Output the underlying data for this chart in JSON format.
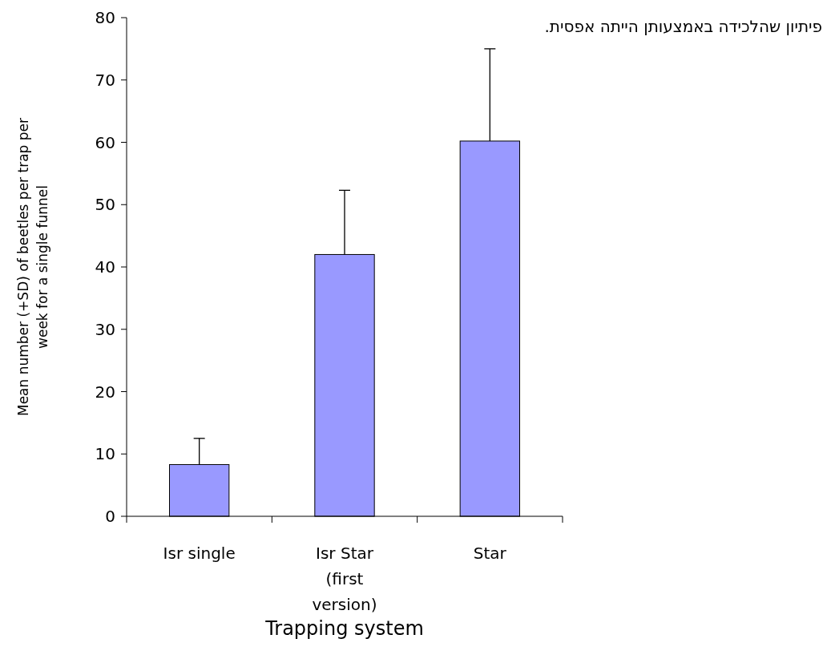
{
  "chart_data": {
    "type": "bar",
    "xlabel": "Trapping system",
    "ylabel": "Mean number (+SD) of beetles per trap per week for a single funnel",
    "categories": [
      "Isr single",
      "Isr Star (first version)",
      "Star"
    ],
    "values": [
      8.3,
      42,
      60.2
    ],
    "errors": [
      [
        8.3,
        12.5
      ],
      [
        42,
        52.3
      ],
      [
        60.2,
        75
      ]
    ],
    "color": "#9999ff",
    "ylim": [
      0,
      80
    ],
    "yticks": [
      0,
      10,
      20,
      30,
      40,
      50,
      60,
      70,
      80
    ],
    "grid": false,
    "annotations": [
      "פיתיון שהלכידה באמצעותן הייתה אפסית."
    ]
  }
}
